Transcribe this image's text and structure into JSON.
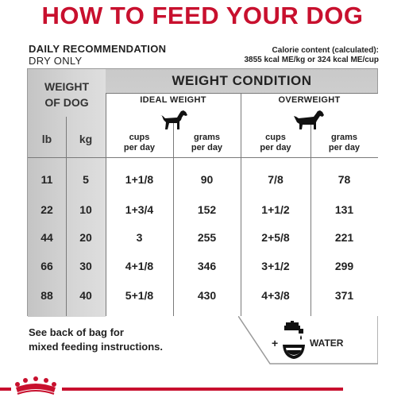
{
  "title": "HOW TO FEED YOUR DOG",
  "daily_recommendation": "DAILY RECOMMENDATION",
  "dry_only": "DRY ONLY",
  "calorie_line1": "Calorie content (calculated):",
  "calorie_line2": "3855 kcal ME/kg or 324 kcal ME/cup",
  "table": {
    "weight_of_dog_line1": "WEIGHT",
    "weight_of_dog_line2": "OF DOG",
    "weight_condition": "WEIGHT CONDITION",
    "ideal_weight": "IDEAL WEIGHT",
    "overweight": "OVERWEIGHT",
    "unit_lb": "lb",
    "unit_kg": "kg",
    "cups_line1": "cups",
    "cups_line2": "per day",
    "grams_line1": "grams",
    "grams_line2": "per day",
    "rows": [
      {
        "lb": "11",
        "kg": "5",
        "ideal_cups": "1+1/8",
        "ideal_grams": "90",
        "over_cups": "7/8",
        "over_grams": "78"
      },
      {
        "lb": "22",
        "kg": "10",
        "ideal_cups": "1+3/4",
        "ideal_grams": "152",
        "over_cups": "1+1/2",
        "over_grams": "131"
      },
      {
        "lb": "44",
        "kg": "20",
        "ideal_cups": "3",
        "ideal_grams": "255",
        "over_cups": "2+5/8",
        "over_grams": "221"
      },
      {
        "lb": "66",
        "kg": "30",
        "ideal_cups": "4+1/8",
        "ideal_grams": "346",
        "over_cups": "3+1/2",
        "over_grams": "299"
      },
      {
        "lb": "88",
        "kg": "40",
        "ideal_cups": "5+1/8",
        "ideal_grams": "430",
        "over_cups": "4+3/8",
        "over_grams": "371"
      }
    ]
  },
  "note_line1": "See back of bag for",
  "note_line2": "mixed feeding instructions.",
  "water_plus": "+",
  "water_label": "WATER",
  "icons": {
    "ideal_dog": "dog-silhouette-icon",
    "overweight_dog": "dog-silhouette-icon",
    "water": "faucet-bowl-icon",
    "logo": "crown-logo-icon"
  },
  "colors": {
    "brand_red": "#c8102e"
  }
}
